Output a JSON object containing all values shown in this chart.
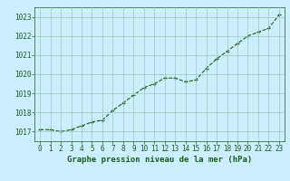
{
  "x": [
    0,
    1,
    2,
    3,
    4,
    5,
    6,
    7,
    8,
    9,
    10,
    11,
    12,
    13,
    14,
    15,
    16,
    17,
    18,
    19,
    20,
    21,
    22,
    23
  ],
  "y": [
    1017.1,
    1017.1,
    1017.0,
    1017.1,
    1017.3,
    1017.5,
    1017.6,
    1018.1,
    1018.5,
    1018.9,
    1019.3,
    1019.5,
    1019.8,
    1019.8,
    1019.6,
    1019.7,
    1020.3,
    1020.8,
    1021.2,
    1021.6,
    1022.0,
    1022.2,
    1022.4,
    1023.1
  ],
  "line_color": "#1a5c1a",
  "marker": "+",
  "marker_color": "#1a5c1a",
  "bg_color": "#cceeff",
  "grid_color": "#99ccbb",
  "xlabel": "Graphe pression niveau de la mer (hPa)",
  "xlabel_color": "#1a5c1a",
  "tick_color": "#1a5c1a",
  "ylim": [
    1016.5,
    1023.5
  ],
  "xlim": [
    -0.5,
    23.5
  ],
  "yticks": [
    1017,
    1018,
    1019,
    1020,
    1021,
    1022,
    1023
  ],
  "xticks": [
    0,
    1,
    2,
    3,
    4,
    5,
    6,
    7,
    8,
    9,
    10,
    11,
    12,
    13,
    14,
    15,
    16,
    17,
    18,
    19,
    20,
    21,
    22,
    23
  ],
  "xlabel_fontsize": 6.5,
  "tick_fontsize": 5.5,
  "linewidth": 0.8,
  "markersize": 3.5
}
